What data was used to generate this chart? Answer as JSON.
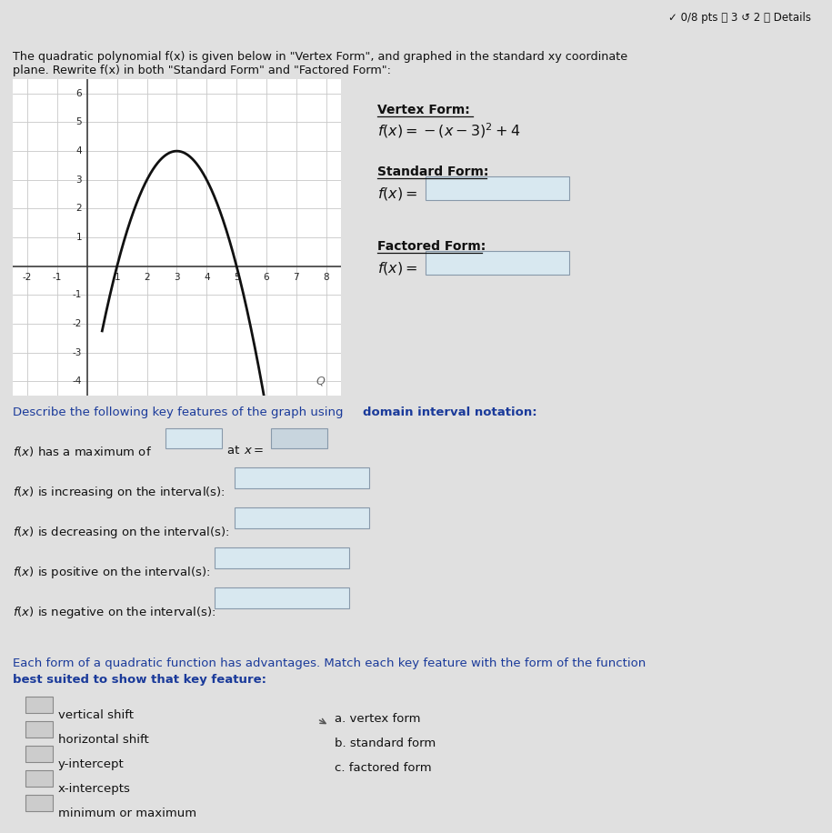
{
  "bg_color": "#e0e0e0",
  "header_bg": "#c8c8c8",
  "header_text": "✓ 0/8 pts ❓ 3 ↺ 2 ⓘ Details",
  "intro_line1": "The quadratic polynomial f(x) is given below in \"Vertex Form\", and graphed in the standard xy coordinate",
  "intro_line2": "plane. Rewrite f(x) in both \"Standard Form\" and \"Factored Form\":",
  "graph_xlim": [
    -2.5,
    8.5
  ],
  "graph_ylim": [
    -4.5,
    6.5
  ],
  "curve_color": "#111111",
  "grid_color": "#c0c0c0",
  "axis_color": "#222222",
  "text_dark": "#111111",
  "text_blue": "#1a3a9a",
  "box_fill": "#d8e8f0",
  "box_fill2": "#c8d5de",
  "box_stroke": "#8899aa",
  "vform_label": "Vertex Form:",
  "sform_label": "Standard Form:",
  "fform_label": "Factored Form:",
  "match_items": [
    "vertical shift",
    "horizontal shift",
    "y-intercept",
    "x-intercepts",
    "minimum or maximum"
  ],
  "match_right": [
    "a. vertex form",
    "b. standard form",
    "c. factored form"
  ]
}
